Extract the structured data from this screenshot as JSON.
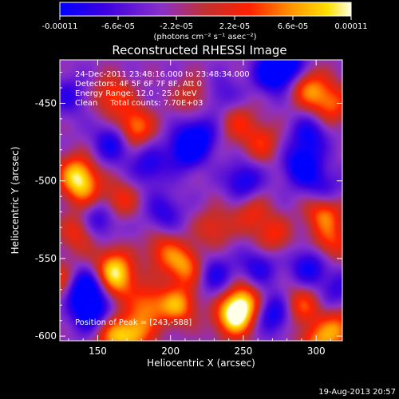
{
  "colorbar": {
    "tick_labels": [
      "-0.00011",
      "-6.6e-05",
      "-2.2e-05",
      "2.2e-05",
      "6.6e-05",
      "0.00011"
    ],
    "units": "(photons cm⁻² s⁻¹ asec⁻²)",
    "colors": [
      "#0000ff",
      "#3a00e0",
      "#8a30c8",
      "#c23030",
      "#ff2000",
      "#ff9800",
      "#ffe000",
      "#ffffe8"
    ]
  },
  "chart_data": {
    "type": "heatmap",
    "title": "Reconstructed RHESSI Image",
    "xlabel": "Heliocentric X (arcsec)",
    "ylabel": "Heliocentric Y (arcsec)",
    "xlim": [
      124,
      318
    ],
    "ylim": [
      -603,
      -422
    ],
    "xticks": [
      150,
      200,
      250,
      300
    ],
    "yticks": [
      -450,
      -500,
      -550,
      -600
    ],
    "clim": [
      -0.00011,
      0.00011
    ],
    "annotations": [
      "24-Dec-2011 23:48:16.000 to 23:48:34.000",
      "Detectors: 4F 5F 6F 7F 8F, Att 0",
      "Energy Range: 12.0 - 25.0 keV",
      "Clean     Total counts: 7.70E+03"
    ],
    "peak_label": "Position of Peak = [243,-588]",
    "blobs": [
      {
        "x": 243,
        "y": -588,
        "v": 1.0
      },
      {
        "x": 250,
        "y": -578,
        "v": 0.9
      },
      {
        "x": 205,
        "y": -580,
        "v": 0.8
      },
      {
        "x": 185,
        "y": -580,
        "v": 0.65
      },
      {
        "x": 210,
        "y": -555,
        "v": 0.75
      },
      {
        "x": 195,
        "y": -545,
        "v": 0.55
      },
      {
        "x": 160,
        "y": -555,
        "v": 0.75
      },
      {
        "x": 165,
        "y": -565,
        "v": 0.6
      },
      {
        "x": 160,
        "y": -600,
        "v": 0.7
      },
      {
        "x": 175,
        "y": -598,
        "v": 0.75
      },
      {
        "x": 135,
        "y": -495,
        "v": 0.8
      },
      {
        "x": 140,
        "y": -505,
        "v": 0.6
      },
      {
        "x": 137,
        "y": -533,
        "v": 0.55
      },
      {
        "x": 175,
        "y": -465,
        "v": 0.8
      },
      {
        "x": 160,
        "y": -445,
        "v": 0.6
      },
      {
        "x": 165,
        "y": -512,
        "v": 0.5
      },
      {
        "x": 125,
        "y": -565,
        "v": 0.55
      },
      {
        "x": 230,
        "y": -530,
        "v": 0.45
      },
      {
        "x": 295,
        "y": -440,
        "v": 0.7
      },
      {
        "x": 310,
        "y": -450,
        "v": 0.65
      },
      {
        "x": 305,
        "y": -520,
        "v": 0.75
      },
      {
        "x": 310,
        "y": -540,
        "v": 0.55
      },
      {
        "x": 290,
        "y": -580,
        "v": 0.6
      },
      {
        "x": 315,
        "y": -595,
        "v": 0.7
      },
      {
        "x": 300,
        "y": -605,
        "v": 0.65
      },
      {
        "x": 270,
        "y": -535,
        "v": 0.5
      },
      {
        "x": 255,
        "y": -520,
        "v": 0.45
      },
      {
        "x": 262,
        "y": -475,
        "v": 0.5
      },
      {
        "x": 245,
        "y": -462,
        "v": 0.45
      },
      {
        "x": 215,
        "y": -445,
        "v": 0.4
      },
      {
        "x": 140,
        "y": -570,
        "v": -1.0
      },
      {
        "x": 145,
        "y": -585,
        "v": -0.7
      },
      {
        "x": 270,
        "y": -430,
        "v": -0.8
      },
      {
        "x": 280,
        "y": -423,
        "v": -0.7
      },
      {
        "x": 290,
        "y": -490,
        "v": -0.75
      },
      {
        "x": 295,
        "y": -470,
        "v": -0.55
      },
      {
        "x": 210,
        "y": -480,
        "v": -0.7
      },
      {
        "x": 220,
        "y": -470,
        "v": -0.6
      },
      {
        "x": 270,
        "y": -585,
        "v": -0.65
      },
      {
        "x": 295,
        "y": -555,
        "v": -0.6
      },
      {
        "x": 230,
        "y": -560,
        "v": -0.5
      },
      {
        "x": 160,
        "y": -475,
        "v": -0.6
      },
      {
        "x": 150,
        "y": -525,
        "v": -0.55
      },
      {
        "x": 185,
        "y": -490,
        "v": -0.5
      },
      {
        "x": 250,
        "y": -500,
        "v": -0.6
      },
      {
        "x": 305,
        "y": -505,
        "v": -0.45
      },
      {
        "x": 235,
        "y": -445,
        "v": -0.35
      },
      {
        "x": 195,
        "y": -520,
        "v": -0.45
      },
      {
        "x": 130,
        "y": -445,
        "v": -0.4
      },
      {
        "x": 260,
        "y": -555,
        "v": -0.5
      },
      {
        "x": 315,
        "y": -570,
        "v": -0.4
      }
    ]
  },
  "footer": {
    "timestamp": "19-Aug-2013 20:57"
  }
}
